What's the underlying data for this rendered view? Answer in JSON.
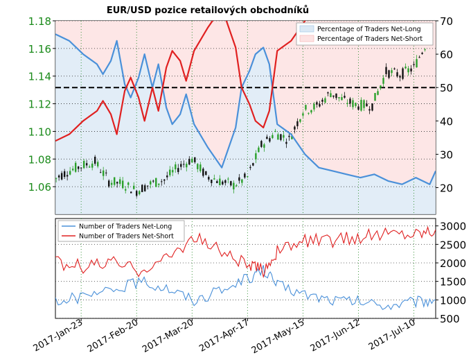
{
  "title": "EUR/USD pozice retailových obchodníků",
  "colors": {
    "price_axis": "#1a8a1a",
    "long": "#4a90d9",
    "short": "#e02020",
    "long_fill": "#dbe9f5",
    "short_fill": "#fde3e3",
    "grid": "#2a8a2a",
    "bull": "#2aa02a",
    "bear": "#111111"
  },
  "x_ticks": [
    "2017-Jan-23",
    "2017-Feb-20",
    "2017-Mar-20",
    "2017-Apr-17",
    "2017-May-15",
    "2017-Jun-12",
    "2017-Jul-10"
  ],
  "chart_data": [
    {
      "type": "line",
      "title": "EUR/USD pozice retailových obchodníků",
      "x_range": [
        "2017-01-10",
        "2017-07-21"
      ],
      "price_axis": {
        "side": "left",
        "ylim": [
          1.04,
          1.18
        ],
        "ticks": [
          "1.06",
          "1.08",
          "1.10",
          "1.12",
          "1.14",
          "1.16",
          "1.18"
        ]
      },
      "percent_axis": {
        "side": "right",
        "ylim": [
          12,
          70
        ],
        "ticks": [
          "20",
          "30",
          "40",
          "50",
          "60",
          "70"
        ],
        "reference_line": 50
      },
      "legend": {
        "placement": "top-right",
        "entries": [
          "Percentage of Traders Net-Long",
          "Percentage of Traders Net-Short"
        ]
      },
      "grid": true,
      "price_candles_weekly_approx": [
        {
          "x": "2017-01-09",
          "close": 1.065
        },
        {
          "x": "2017-01-16",
          "close": 1.071
        },
        {
          "x": "2017-01-23",
          "close": 1.075
        },
        {
          "x": "2017-01-30",
          "close": 1.078
        },
        {
          "x": "2017-02-06",
          "close": 1.064
        },
        {
          "x": "2017-02-13",
          "close": 1.062
        },
        {
          "x": "2017-02-20",
          "close": 1.057
        },
        {
          "x": "2017-02-27",
          "close": 1.062
        },
        {
          "x": "2017-03-06",
          "close": 1.065
        },
        {
          "x": "2017-03-13",
          "close": 1.074
        },
        {
          "x": "2017-03-20",
          "close": 1.08
        },
        {
          "x": "2017-03-27",
          "close": 1.068
        },
        {
          "x": "2017-04-03",
          "close": 1.064
        },
        {
          "x": "2017-04-10",
          "close": 1.061
        },
        {
          "x": "2017-04-17",
          "close": 1.067
        },
        {
          "x": "2017-04-24",
          "close": 1.09
        },
        {
          "x": "2017-05-01",
          "close": 1.099
        },
        {
          "x": "2017-05-08",
          "close": 1.094
        },
        {
          "x": "2017-05-15",
          "close": 1.115
        },
        {
          "x": "2017-05-22",
          "close": 1.118
        },
        {
          "x": "2017-05-29",
          "close": 1.128
        },
        {
          "x": "2017-06-05",
          "close": 1.122
        },
        {
          "x": "2017-06-12",
          "close": 1.119
        },
        {
          "x": "2017-06-19",
          "close": 1.119
        },
        {
          "x": "2017-06-26",
          "close": 1.143
        },
        {
          "x": "2017-07-03",
          "close": 1.141
        },
        {
          "x": "2017-07-10",
          "close": 1.146
        },
        {
          "x": "2017-07-17",
          "close": 1.166
        }
      ],
      "series": [
        {
          "name": "Percentage of Traders Net-Long",
          "axis": "percent",
          "x": [
            "2017-01-10",
            "2017-01-17",
            "2017-01-24",
            "2017-01-31",
            "2017-02-03",
            "2017-02-07",
            "2017-02-10",
            "2017-02-14",
            "2017-02-17",
            "2017-02-21",
            "2017-02-24",
            "2017-02-28",
            "2017-03-03",
            "2017-03-07",
            "2017-03-10",
            "2017-03-14",
            "2017-03-17",
            "2017-03-21",
            "2017-03-28",
            "2017-04-04",
            "2017-04-11",
            "2017-04-14",
            "2017-04-18",
            "2017-04-21",
            "2017-04-25",
            "2017-04-28",
            "2017-05-02",
            "2017-05-09",
            "2017-05-16",
            "2017-05-23",
            "2017-05-30",
            "2017-06-06",
            "2017-06-13",
            "2017-06-20",
            "2017-06-27",
            "2017-07-04",
            "2017-07-11",
            "2017-07-18",
            "2017-07-21"
          ],
          "values": [
            66,
            64,
            60,
            57,
            54,
            58,
            64,
            51,
            47,
            53,
            60,
            50,
            57,
            44,
            39,
            42,
            48,
            39,
            32,
            26,
            38,
            50,
            55,
            60,
            62,
            57,
            39,
            36,
            30,
            26,
            25,
            24,
            23,
            24,
            22,
            21,
            23,
            21,
            25
          ]
        },
        {
          "name": "Percentage of Traders Net-Short",
          "axis": "percent",
          "x": [
            "2017-01-10",
            "2017-01-17",
            "2017-01-24",
            "2017-01-31",
            "2017-02-03",
            "2017-02-07",
            "2017-02-10",
            "2017-02-14",
            "2017-02-17",
            "2017-02-21",
            "2017-02-24",
            "2017-02-28",
            "2017-03-03",
            "2017-03-07",
            "2017-03-10",
            "2017-03-14",
            "2017-03-17",
            "2017-03-21",
            "2017-03-28",
            "2017-04-04",
            "2017-04-11",
            "2017-04-14",
            "2017-04-18",
            "2017-04-21",
            "2017-04-25",
            "2017-04-28",
            "2017-05-02",
            "2017-05-09",
            "2017-05-16",
            "2017-05-23",
            "2017-05-30",
            "2017-06-06",
            "2017-06-13",
            "2017-06-20",
            "2017-06-27",
            "2017-07-04",
            "2017-07-11",
            "2017-07-18",
            "2017-07-21"
          ],
          "values": [
            34,
            36,
            40,
            43,
            46,
            42,
            36,
            49,
            53,
            47,
            40,
            50,
            43,
            56,
            61,
            58,
            52,
            61,
            68,
            74,
            62,
            50,
            45,
            40,
            38,
            43,
            61,
            64,
            70,
            74,
            75,
            76,
            77,
            76,
            78,
            79,
            77,
            79,
            75
          ]
        }
      ]
    },
    {
      "type": "line",
      "x_range": [
        "2017-01-10",
        "2017-07-21"
      ],
      "ylim": [
        500,
        3200
      ],
      "y_ticks": [
        "500",
        "1000",
        "1500",
        "2000",
        "2500",
        "3000"
      ],
      "legend": {
        "placement": "top-left",
        "entries": [
          "Number of Traders Net-Long",
          "Number of Traders Net-Short"
        ]
      },
      "grid": true,
      "series": [
        {
          "name": "Number of Traders Net-Long",
          "x": [
            "2017-01-10",
            "2017-01-24",
            "2017-02-07",
            "2017-02-21",
            "2017-03-07",
            "2017-03-21",
            "2017-04-04",
            "2017-04-18",
            "2017-04-25",
            "2017-05-02",
            "2017-05-16",
            "2017-05-30",
            "2017-06-13",
            "2017-06-27",
            "2017-07-11",
            "2017-07-21"
          ],
          "values": [
            1000,
            1050,
            1250,
            1500,
            1350,
            1000,
            1250,
            1600,
            1800,
            1400,
            1150,
            1000,
            950,
            850,
            950,
            1000
          ]
        },
        {
          "name": "Number of Traders Net-Short",
          "x": [
            "2017-01-10",
            "2017-01-24",
            "2017-02-07",
            "2017-02-21",
            "2017-03-07",
            "2017-03-21",
            "2017-04-04",
            "2017-04-18",
            "2017-04-25",
            "2017-05-02",
            "2017-05-16",
            "2017-05-30",
            "2017-06-13",
            "2017-06-27",
            "2017-07-11",
            "2017-07-21"
          ],
          "values": [
            2000,
            1900,
            2000,
            1800,
            2100,
            2700,
            2300,
            1900,
            1800,
            2300,
            2600,
            2600,
            2700,
            2800,
            2800,
            2900
          ]
        }
      ]
    }
  ]
}
